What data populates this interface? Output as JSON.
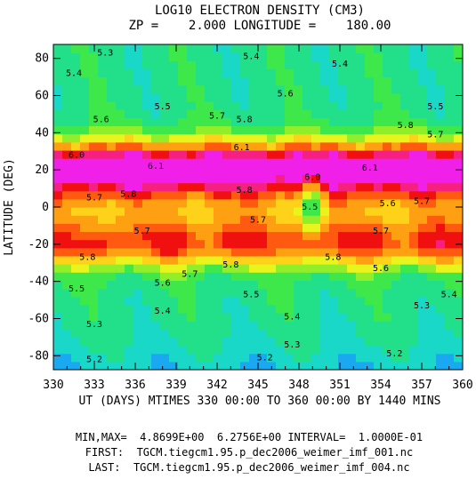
{
  "chart_data": {
    "type": "heatmap",
    "title": "LOG10 ELECTRON DENSITY (CM3)",
    "subtitle": "ZP =    2.000 LONGITUDE =    180.00",
    "xlabel": "UT (DAYS) MTIMES 330 00:00 TO 360 00:00 BY 1440 MINS",
    "ylabel": "LATITUDE (DEG)",
    "xlim": [
      330,
      360
    ],
    "ylim": [
      -87.5,
      87.5
    ],
    "x_ticks": [
      "330",
      "333",
      "336",
      "339",
      "342",
      "345",
      "348",
      "351",
      "354",
      "357",
      "360"
    ],
    "y_ticks": [
      "80",
      "60",
      "40",
      "20",
      "0",
      "-20",
      "-40",
      "-60",
      "-80"
    ],
    "color_levels": [
      {
        "min": 4.8,
        "color": "#1aa8f0"
      },
      {
        "min": 5.1,
        "color": "#19d8c8"
      },
      {
        "min": 5.2,
        "color": "#22e08a"
      },
      {
        "min": 5.3,
        "color": "#3fe84a"
      },
      {
        "min": 5.4,
        "color": "#93ee2a"
      },
      {
        "min": 5.5,
        "color": "#e8f41c"
      },
      {
        "min": 5.6,
        "color": "#ffd21a"
      },
      {
        "min": 5.7,
        "color": "#ff9f12"
      },
      {
        "min": 5.8,
        "color": "#ff5a10"
      },
      {
        "min": 5.9,
        "color": "#f01010"
      },
      {
        "min": 6.0,
        "color": "#f52080"
      },
      {
        "min": 6.1,
        "color": "#f020e8"
      }
    ],
    "contour_labels": [
      {
        "text": "5.3",
        "x": 333.8,
        "y": 83
      },
      {
        "text": "5.4",
        "x": 331.5,
        "y": 72
      },
      {
        "text": "5.4",
        "x": 344.5,
        "y": 81
      },
      {
        "text": "5.4",
        "x": 351.0,
        "y": 77
      },
      {
        "text": "5.6",
        "x": 347.0,
        "y": 61
      },
      {
        "text": "5.5",
        "x": 338.0,
        "y": 54
      },
      {
        "text": "5.5",
        "x": 358.0,
        "y": 54
      },
      {
        "text": "5.6",
        "x": 333.5,
        "y": 47
      },
      {
        "text": "5.7",
        "x": 342.0,
        "y": 49
      },
      {
        "text": "5.8",
        "x": 344.0,
        "y": 47
      },
      {
        "text": "5.8",
        "x": 355.8,
        "y": 44
      },
      {
        "text": "5.7",
        "x": 358.0,
        "y": 39
      },
      {
        "text": "6.0",
        "x": 331.7,
        "y": 28
      },
      {
        "text": "6.1",
        "x": 343.8,
        "y": 32
      },
      {
        "text": "6.1",
        "x": 337.5,
        "y": 22
      },
      {
        "text": "6.0",
        "x": 349.0,
        "y": 16
      },
      {
        "text": "6.1",
        "x": 353.2,
        "y": 21
      },
      {
        "text": "5.8",
        "x": 335.5,
        "y": 7
      },
      {
        "text": "5.8",
        "x": 344.0,
        "y": 9
      },
      {
        "text": "5.7",
        "x": 333.0,
        "y": 5
      },
      {
        "text": "5.5",
        "x": 348.8,
        "y": 0
      },
      {
        "text": "5.7",
        "x": 345.0,
        "y": -7
      },
      {
        "text": "5.6",
        "x": 354.5,
        "y": 2
      },
      {
        "text": "5.7",
        "x": 357.0,
        "y": 3
      },
      {
        "text": "5.7",
        "x": 336.5,
        "y": -13
      },
      {
        "text": "5.7",
        "x": 354.0,
        "y": -13
      },
      {
        "text": "5.8",
        "x": 332.5,
        "y": -27
      },
      {
        "text": "5.8",
        "x": 343.0,
        "y": -31
      },
      {
        "text": "5.8",
        "x": 350.5,
        "y": -27
      },
      {
        "text": "5.6",
        "x": 354.0,
        "y": -33
      },
      {
        "text": "5.7",
        "x": 340.0,
        "y": -36
      },
      {
        "text": "5.6",
        "x": 338.0,
        "y": -41
      },
      {
        "text": "5.5",
        "x": 331.7,
        "y": -44
      },
      {
        "text": "5.5",
        "x": 344.5,
        "y": -47
      },
      {
        "text": "5.4",
        "x": 338.0,
        "y": -56
      },
      {
        "text": "5.4",
        "x": 347.5,
        "y": -59
      },
      {
        "text": "5.4",
        "x": 359.0,
        "y": -47
      },
      {
        "text": "5.3",
        "x": 357.0,
        "y": -53
      },
      {
        "text": "5.3",
        "x": 333.0,
        "y": -63
      },
      {
        "text": "5.3",
        "x": 347.5,
        "y": -74
      },
      {
        "text": "5.2",
        "x": 333.0,
        "y": -82
      },
      {
        "text": "5.2",
        "x": 345.5,
        "y": -81
      },
      {
        "text": "5.2",
        "x": 355.0,
        "y": -79
      }
    ]
  },
  "footer": {
    "minmax": "MIN,MAX=  4.8699E+00  6.2756E+00 INTERVAL=  1.0000E-01",
    "first": "FIRST:  TGCM.tiegcm1.95.p_dec2006_weimer_imf_001.nc",
    "last": "LAST:  TGCM.tiegcm1.95.p_dec2006_weimer_imf_004.nc"
  }
}
